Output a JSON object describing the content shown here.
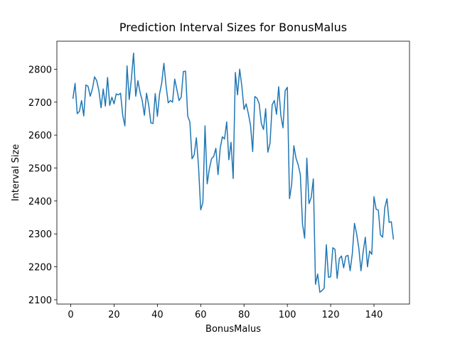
{
  "chart_data": {
    "type": "line",
    "title": "Prediction Interval Sizes for BonusMalus",
    "x_label": "BonusMalus",
    "y_label": "Interval Size",
    "color": "#1f77b4",
    "x": [
      1,
      2,
      3,
      4,
      5,
      6,
      7,
      8,
      9,
      10,
      11,
      12,
      13,
      14,
      15,
      16,
      17,
      18,
      19,
      20,
      21,
      22,
      23,
      24,
      25,
      26,
      27,
      28,
      29,
      30,
      31,
      32,
      33,
      34,
      35,
      36,
      37,
      38,
      39,
      40,
      41,
      42,
      43,
      44,
      45,
      46,
      47,
      48,
      49,
      50,
      51,
      52,
      53,
      54,
      55,
      56,
      57,
      58,
      59,
      60,
      61,
      62,
      63,
      64,
      65,
      66,
      67,
      68,
      69,
      70,
      71,
      72,
      73,
      74,
      75,
      76,
      77,
      78,
      79,
      80,
      81,
      82,
      83,
      84,
      85,
      86,
      87,
      88,
      89,
      90,
      91,
      92,
      93,
      94,
      95,
      96,
      97,
      98,
      99,
      100,
      101,
      102,
      103,
      104,
      105,
      106,
      107,
      108,
      109,
      110,
      111,
      112,
      113,
      114,
      115,
      116,
      117,
      118,
      119,
      120,
      121,
      122,
      123,
      124,
      125,
      126,
      127,
      128,
      129,
      130,
      131,
      132,
      133,
      134,
      135,
      136,
      137,
      138,
      139,
      140,
      141,
      142,
      143,
      144,
      145,
      146,
      147,
      148,
      149
    ],
    "values": [
      2710,
      2757,
      2665,
      2672,
      2705,
      2658,
      2752,
      2748,
      2718,
      2740,
      2777,
      2765,
      2735,
      2683,
      2740,
      2688,
      2775,
      2690,
      2715,
      2695,
      2725,
      2722,
      2727,
      2660,
      2628,
      2810,
      2708,
      2770,
      2849,
      2718,
      2765,
      2730,
      2705,
      2660,
      2727,
      2690,
      2637,
      2635,
      2726,
      2657,
      2725,
      2758,
      2818,
      2750,
      2698,
      2705,
      2700,
      2770,
      2738,
      2705,
      2715,
      2793,
      2794,
      2658,
      2640,
      2528,
      2540,
      2592,
      2505,
      2373,
      2395,
      2628,
      2452,
      2498,
      2528,
      2535,
      2560,
      2480,
      2560,
      2595,
      2588,
      2640,
      2525,
      2578,
      2468,
      2790,
      2722,
      2800,
      2748,
      2678,
      2695,
      2665,
      2630,
      2550,
      2717,
      2712,
      2695,
      2635,
      2617,
      2680,
      2548,
      2575,
      2692,
      2705,
      2663,
      2747,
      2660,
      2622,
      2735,
      2745,
      2407,
      2450,
      2568,
      2530,
      2510,
      2480,
      2330,
      2287,
      2530,
      2392,
      2410,
      2467,
      2147,
      2178,
      2123,
      2128,
      2135,
      2267,
      2168,
      2170,
      2258,
      2253,
      2165,
      2225,
      2233,
      2197,
      2232,
      2235,
      2188,
      2240,
      2332,
      2300,
      2257,
      2188,
      2245,
      2290,
      2200,
      2248,
      2238,
      2413,
      2375,
      2372,
      2297,
      2290,
      2380,
      2407,
      2335,
      2337,
      2283
    ],
    "xlim": [
      -6.4,
      156.4
    ],
    "ylim": [
      2087,
      2885
    ],
    "xticks": [
      0,
      20,
      40,
      60,
      80,
      100,
      120,
      140
    ],
    "yticks": [
      2100,
      2200,
      2300,
      2400,
      2500,
      2600,
      2700,
      2800
    ]
  }
}
